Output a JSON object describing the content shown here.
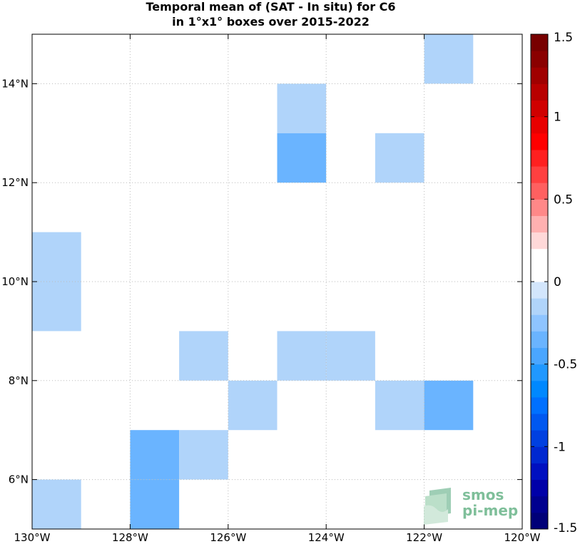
{
  "title": {
    "line1": "Temporal mean of (SAT - In situ) for C6",
    "line2": "in 1°x1° boxes over 2015-2022"
  },
  "chart_data": {
    "type": "heatmap",
    "xlim": [
      -130,
      -120
    ],
    "ylim": [
      5,
      15
    ],
    "x_ticks": [
      {
        "value": -130,
        "label": "130°W"
      },
      {
        "value": -128,
        "label": "128°W"
      },
      {
        "value": -126,
        "label": "126°W"
      },
      {
        "value": -124,
        "label": "124°W"
      },
      {
        "value": -122,
        "label": "122°W"
      },
      {
        "value": -120,
        "label": "120°W"
      }
    ],
    "y_ticks": [
      {
        "value": 6,
        "label": "6°N"
      },
      {
        "value": 8,
        "label": "8°N"
      },
      {
        "value": 10,
        "label": "10°N"
      },
      {
        "value": 12,
        "label": "12°N"
      },
      {
        "value": 14,
        "label": "14°N"
      }
    ],
    "grid": true,
    "cells": [
      {
        "lon": -130,
        "lat": 14,
        "value": 0.15
      },
      {
        "lon": -122,
        "lat": 14,
        "value": -0.15
      },
      {
        "lon": -125,
        "lat": 13,
        "value": -0.15
      },
      {
        "lon": -125,
        "lat": 12,
        "value": -0.3
      },
      {
        "lon": -123,
        "lat": 12,
        "value": -0.15
      },
      {
        "lon": -129,
        "lat": 11,
        "value": 0.15
      },
      {
        "lon": -130,
        "lat": 10,
        "value": -0.15
      },
      {
        "lon": -130,
        "lat": 9,
        "value": -0.15
      },
      {
        "lon": -127,
        "lat": 8,
        "value": -0.15
      },
      {
        "lon": -125,
        "lat": 8,
        "value": -0.15
      },
      {
        "lon": -124,
        "lat": 8,
        "value": -0.15
      },
      {
        "lon": -126,
        "lat": 7,
        "value": -0.15
      },
      {
        "lon": -123,
        "lat": 7,
        "value": -0.15
      },
      {
        "lon": -122,
        "lat": 7,
        "value": -0.3
      },
      {
        "lon": -128,
        "lat": 6,
        "value": -0.3
      },
      {
        "lon": -127,
        "lat": 6,
        "value": -0.15
      },
      {
        "lon": -128,
        "lat": 5,
        "value": -0.3
      },
      {
        "lon": -130,
        "lat": 5,
        "value": -0.15
      }
    ],
    "colorbar": {
      "range": [
        -1.5,
        1.5
      ],
      "ticks": [
        {
          "value": 1.5,
          "label": "1.5"
        },
        {
          "value": 1,
          "label": "1"
        },
        {
          "value": 0.5,
          "label": "0.5"
        },
        {
          "value": 0,
          "label": "0"
        },
        {
          "value": -0.5,
          "label": "-0.5"
        },
        {
          "value": -1,
          "label": "-1"
        },
        {
          "value": -1.5,
          "label": "-1.5"
        }
      ],
      "colors": [
        "#000078",
        "#00008f",
        "#0000a8",
        "#0010c0",
        "#0028d0",
        "#0040e0",
        "#0058f0",
        "#0070ff",
        "#0088ff",
        "#2098ff",
        "#4aa6ff",
        "#6ab4ff",
        "#8ec4ff",
        "#b0d4fa",
        "#d3e6fc",
        "#ffffff",
        "#ffffff",
        "#ffd8d8",
        "#ffb0b0",
        "#ff8888",
        "#ff6060",
        "#ff4040",
        "#ff2020",
        "#ff0000",
        "#e80000",
        "#d00000",
        "#b80000",
        "#a00000",
        "#8a0000",
        "#780000"
      ]
    }
  },
  "logo": {
    "line1": "smos",
    "line2": "pi-mep"
  }
}
